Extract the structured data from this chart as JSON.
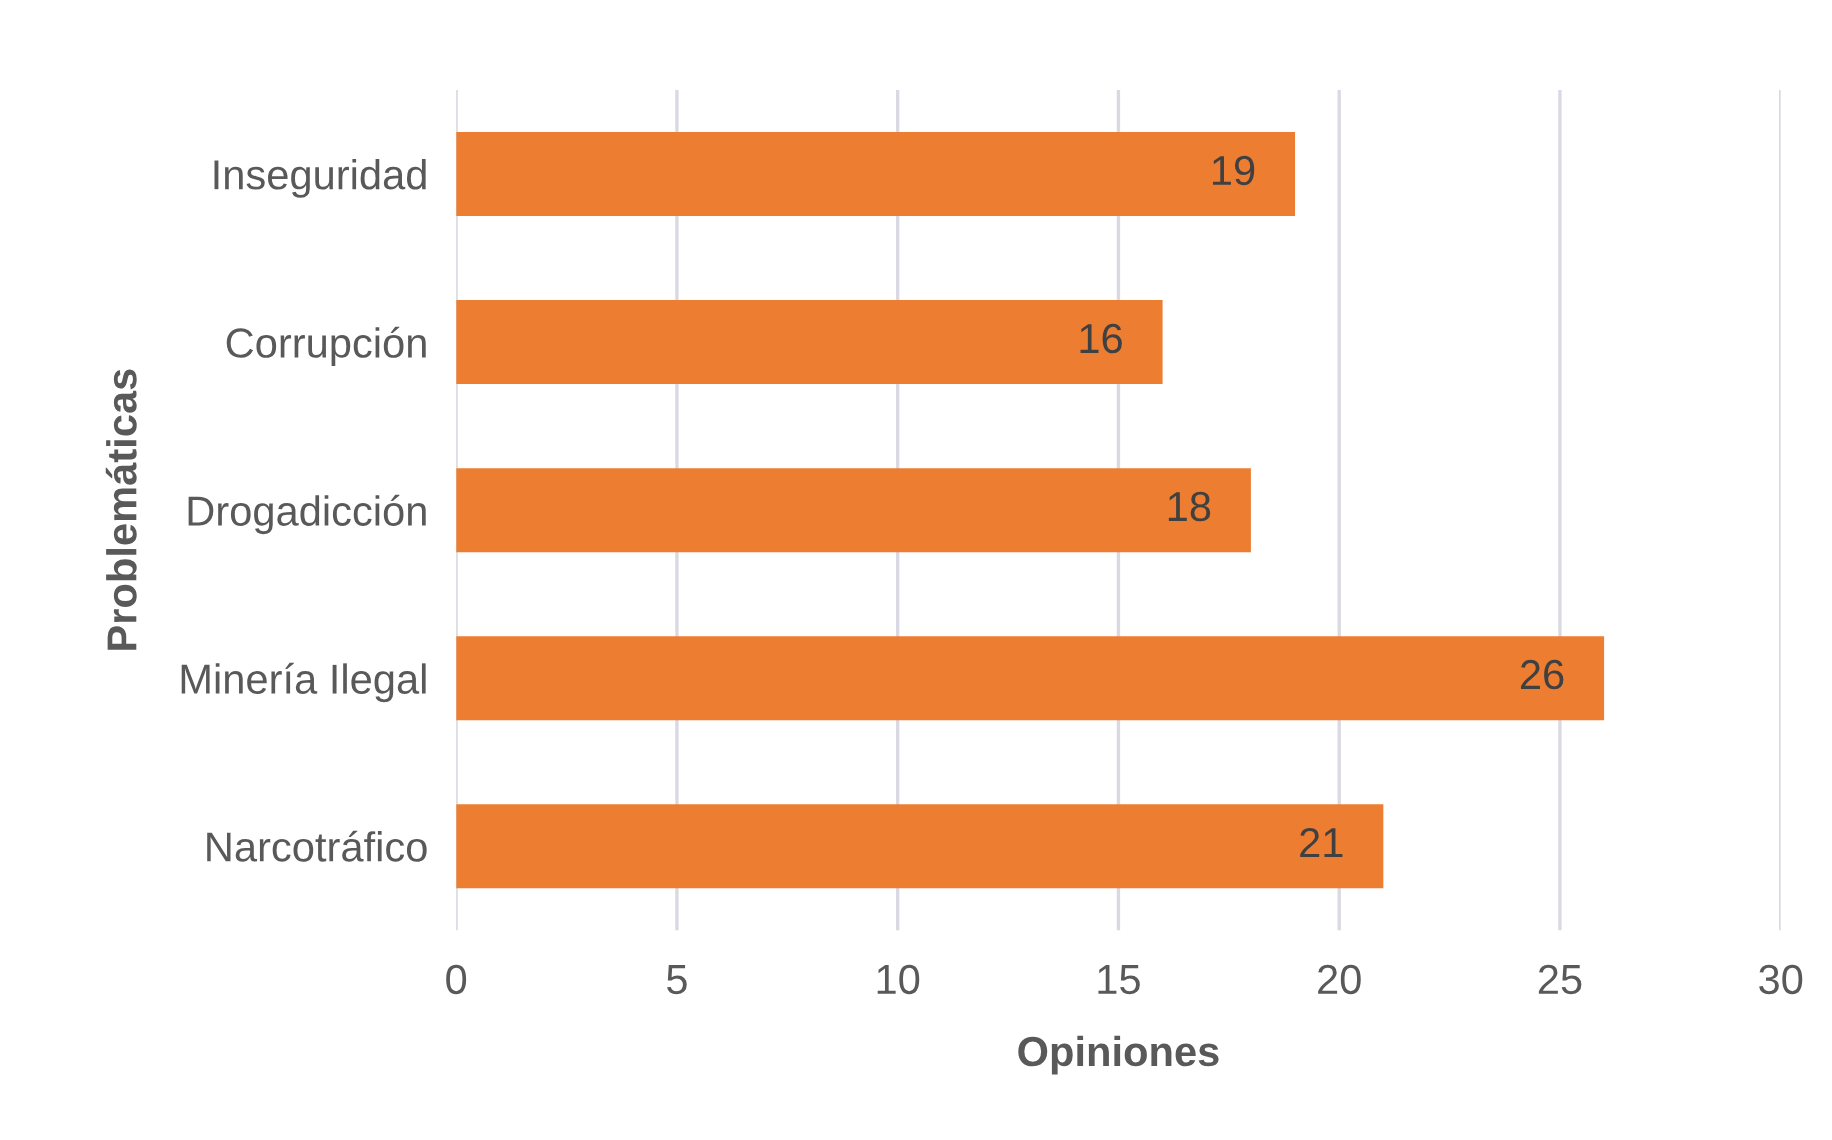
{
  "chart_data": {
    "type": "bar",
    "orientation": "horizontal",
    "xlabel": "Opiniones",
    "ylabel": "Problemáticas",
    "categories": [
      "Inseguridad",
      "Corrupción",
      "Drogadicción",
      "Minería Ilegal",
      "Narcotráfico"
    ],
    "values": [
      19,
      16,
      18,
      26,
      21
    ],
    "color": "#ed7d31",
    "xlim": [
      0,
      30
    ],
    "xticks": [
      0,
      5,
      10,
      15,
      20,
      25,
      30
    ],
    "grid": "x",
    "data_labels": true,
    "legend": false
  }
}
